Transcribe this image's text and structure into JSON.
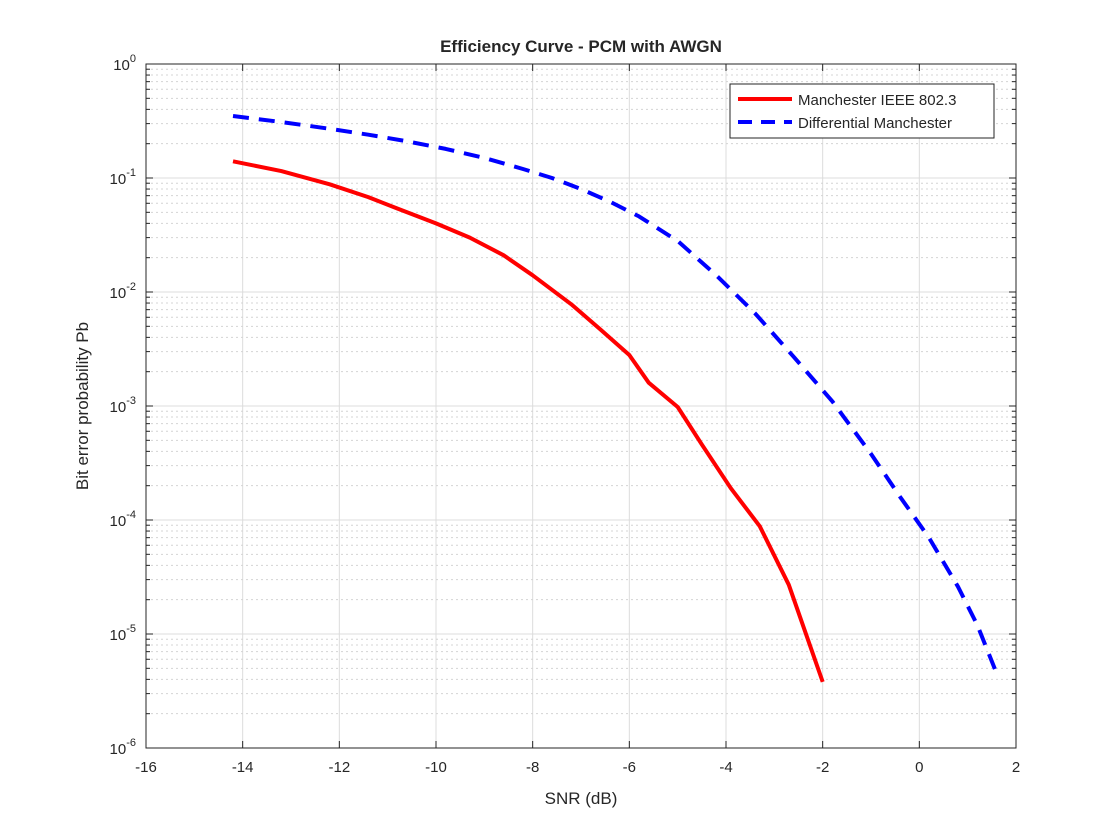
{
  "chart_data": {
    "type": "line",
    "title": "Efficiency Curve - PCM with AWGN",
    "xlabel": "SNR (dB)",
    "ylabel": "Bit error probability Pb",
    "xlim": [
      -16,
      2
    ],
    "ylim": [
      1e-06,
      1
    ],
    "yscale": "log",
    "grid": true,
    "minor_grid": true,
    "legend_position": "top-right",
    "x_ticks": [
      -16,
      -14,
      -12,
      -10,
      -8,
      -6,
      -4,
      -2,
      0,
      2
    ],
    "y_tick_exponents": [
      0,
      -1,
      -2,
      -3,
      -4,
      -5,
      -6
    ],
    "series": [
      {
        "name": "Manchester IEEE 802.3",
        "color": "#ff0000",
        "line_style": "solid",
        "x": [
          -14.2,
          -13.2,
          -12.2,
          -11.4,
          -10.8,
          -10.0,
          -9.3,
          -8.6,
          -8.0,
          -7.2,
          -6.6,
          -6.0,
          -5.6,
          -5.0,
          -4.5,
          -3.9,
          -3.3,
          -2.7,
          -2.0
        ],
        "y": [
          0.14,
          0.115,
          0.088,
          0.068,
          0.054,
          0.04,
          0.03,
          0.021,
          0.014,
          0.0078,
          0.0047,
          0.0028,
          0.0016,
          0.00098,
          0.00046,
          0.00019,
          8.8e-05,
          2.7e-05,
          3.8e-06
        ]
      },
      {
        "name": "Differential Manchester",
        "color": "#0000ff",
        "line_style": "dashed",
        "x": [
          -14.2,
          -13.2,
          -12.2,
          -11.4,
          -10.6,
          -9.8,
          -9.0,
          -8.2,
          -7.6,
          -7.0,
          -6.4,
          -5.8,
          -5.0,
          -4.2,
          -3.4,
          -2.6,
          -1.8,
          -1.0,
          -0.4,
          0.2,
          0.8,
          1.2,
          1.6
        ],
        "y": [
          0.35,
          0.31,
          0.27,
          0.24,
          0.21,
          0.18,
          0.15,
          0.12,
          0.1,
          0.08,
          0.062,
          0.046,
          0.028,
          0.014,
          0.0065,
          0.0027,
          0.0011,
          0.00038,
          0.00016,
          7e-05,
          2.6e-05,
          1.2e-05,
          4.5e-06
        ]
      }
    ]
  }
}
